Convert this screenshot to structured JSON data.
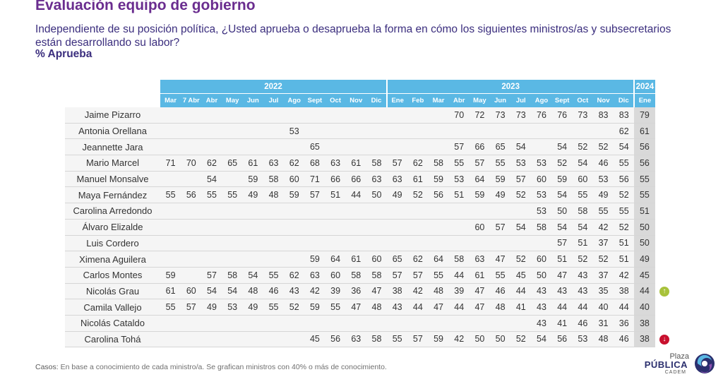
{
  "title": "Evaluación equipo de gobierno",
  "subtitle": "Independiente de su posición política, ¿Usted aprueba o desaprueba la forma en cómo los siguientes ministros/as y subsecretarios están desarrollando su labor?",
  "metric_label": "% Aprueba",
  "footer": {
    "label": "Casos:",
    "text": " En base a conocimiento de cada ministro/a. Se grafican ministros con 40% o más de conocimiento."
  },
  "logo": {
    "line1": "Plaza",
    "line2": "PÚBLICA",
    "line3": "CADEM"
  },
  "colors": {
    "header": "#5ab8e4",
    "title": "#6a2d8f",
    "text": "#3b2e7e",
    "up": "#a8c23b",
    "down": "#c8102e"
  },
  "chart_data": {
    "type": "table",
    "title": "Evaluación equipo de gobierno",
    "years": [
      {
        "label": "2022",
        "span": 11
      },
      {
        "label": "2023",
        "span": 12
      },
      {
        "label": "2024",
        "span": 1
      }
    ],
    "columns": [
      "Mar",
      "7 Abr",
      "Abr",
      "May",
      "Jun",
      "Jul",
      "Ago",
      "Sept",
      "Oct",
      "Nov",
      "Dic",
      "Ene",
      "Feb",
      "Mar",
      "Abr",
      "May",
      "Jun",
      "Jul",
      "Ago",
      "Sept",
      "Oct",
      "Nov",
      "Dic",
      "Ene"
    ],
    "rows": [
      {
        "name": "Jaime Pizarro",
        "values": [
          null,
          null,
          null,
          null,
          null,
          null,
          null,
          null,
          null,
          null,
          null,
          null,
          null,
          null,
          70,
          72,
          73,
          73,
          76,
          76,
          73,
          83,
          83,
          79
        ]
      },
      {
        "name": "Antonia Orellana",
        "values": [
          null,
          null,
          null,
          null,
          null,
          null,
          53,
          null,
          null,
          null,
          null,
          null,
          null,
          null,
          null,
          null,
          null,
          null,
          null,
          null,
          null,
          null,
          62,
          61
        ]
      },
      {
        "name": "Jeannette Jara",
        "values": [
          null,
          null,
          null,
          null,
          null,
          null,
          null,
          65,
          null,
          null,
          null,
          null,
          null,
          null,
          57,
          66,
          65,
          54,
          null,
          54,
          52,
          52,
          54,
          56
        ]
      },
      {
        "name": "Mario Marcel",
        "values": [
          71,
          70,
          62,
          65,
          61,
          63,
          62,
          68,
          63,
          61,
          58,
          57,
          62,
          58,
          55,
          57,
          55,
          53,
          53,
          52,
          54,
          46,
          55,
          56
        ]
      },
      {
        "name": "Manuel Monsalve",
        "values": [
          null,
          null,
          54,
          null,
          59,
          58,
          60,
          71,
          66,
          66,
          63,
          63,
          61,
          59,
          53,
          64,
          59,
          57,
          60,
          59,
          60,
          53,
          56,
          55
        ]
      },
      {
        "name": "Maya Fernández",
        "values": [
          55,
          56,
          55,
          55,
          49,
          48,
          59,
          57,
          51,
          44,
          50,
          49,
          52,
          56,
          51,
          59,
          49,
          52,
          53,
          54,
          55,
          49,
          52,
          55
        ]
      },
      {
        "name": "Carolina Arredondo",
        "values": [
          null,
          null,
          null,
          null,
          null,
          null,
          null,
          null,
          null,
          null,
          null,
          null,
          null,
          null,
          null,
          null,
          null,
          null,
          53,
          50,
          58,
          55,
          55,
          51
        ]
      },
      {
        "name": "Álvaro Elizalde",
        "values": [
          null,
          null,
          null,
          null,
          null,
          null,
          null,
          null,
          null,
          null,
          null,
          null,
          null,
          null,
          null,
          60,
          57,
          54,
          58,
          54,
          54,
          42,
          52,
          50
        ]
      },
      {
        "name": "Luis Cordero",
        "values": [
          null,
          null,
          null,
          null,
          null,
          null,
          null,
          null,
          null,
          null,
          null,
          null,
          null,
          null,
          null,
          null,
          null,
          null,
          null,
          57,
          51,
          37,
          51,
          50
        ]
      },
      {
        "name": "Ximena Aguilera",
        "values": [
          null,
          null,
          null,
          null,
          null,
          null,
          null,
          59,
          64,
          61,
          60,
          65,
          62,
          64,
          58,
          63,
          47,
          52,
          60,
          51,
          52,
          52,
          51,
          49
        ]
      },
      {
        "name": "Carlos Montes",
        "values": [
          59,
          null,
          57,
          58,
          54,
          55,
          62,
          63,
          60,
          58,
          58,
          57,
          57,
          55,
          44,
          61,
          55,
          45,
          50,
          47,
          43,
          37,
          42,
          45
        ]
      },
      {
        "name": "Nicolás Grau",
        "values": [
          61,
          60,
          54,
          54,
          48,
          46,
          43,
          42,
          39,
          36,
          47,
          38,
          42,
          48,
          39,
          47,
          46,
          44,
          43,
          43,
          43,
          35,
          38,
          44
        ],
        "trend": "up"
      },
      {
        "name": "Camila Vallejo",
        "values": [
          55,
          57,
          49,
          53,
          49,
          55,
          52,
          59,
          55,
          47,
          48,
          43,
          44,
          47,
          44,
          47,
          48,
          41,
          43,
          44,
          44,
          40,
          44,
          40
        ]
      },
      {
        "name": "Nicolás Cataldo",
        "values": [
          null,
          null,
          null,
          null,
          null,
          null,
          null,
          null,
          null,
          null,
          null,
          null,
          null,
          null,
          null,
          null,
          null,
          null,
          43,
          41,
          46,
          31,
          36,
          38
        ]
      },
      {
        "name": "Carolina Tohá",
        "values": [
          null,
          null,
          null,
          null,
          null,
          null,
          null,
          45,
          56,
          63,
          58,
          55,
          57,
          59,
          42,
          50,
          50,
          52,
          54,
          56,
          53,
          48,
          46,
          38
        ],
        "trend": "down"
      }
    ]
  }
}
